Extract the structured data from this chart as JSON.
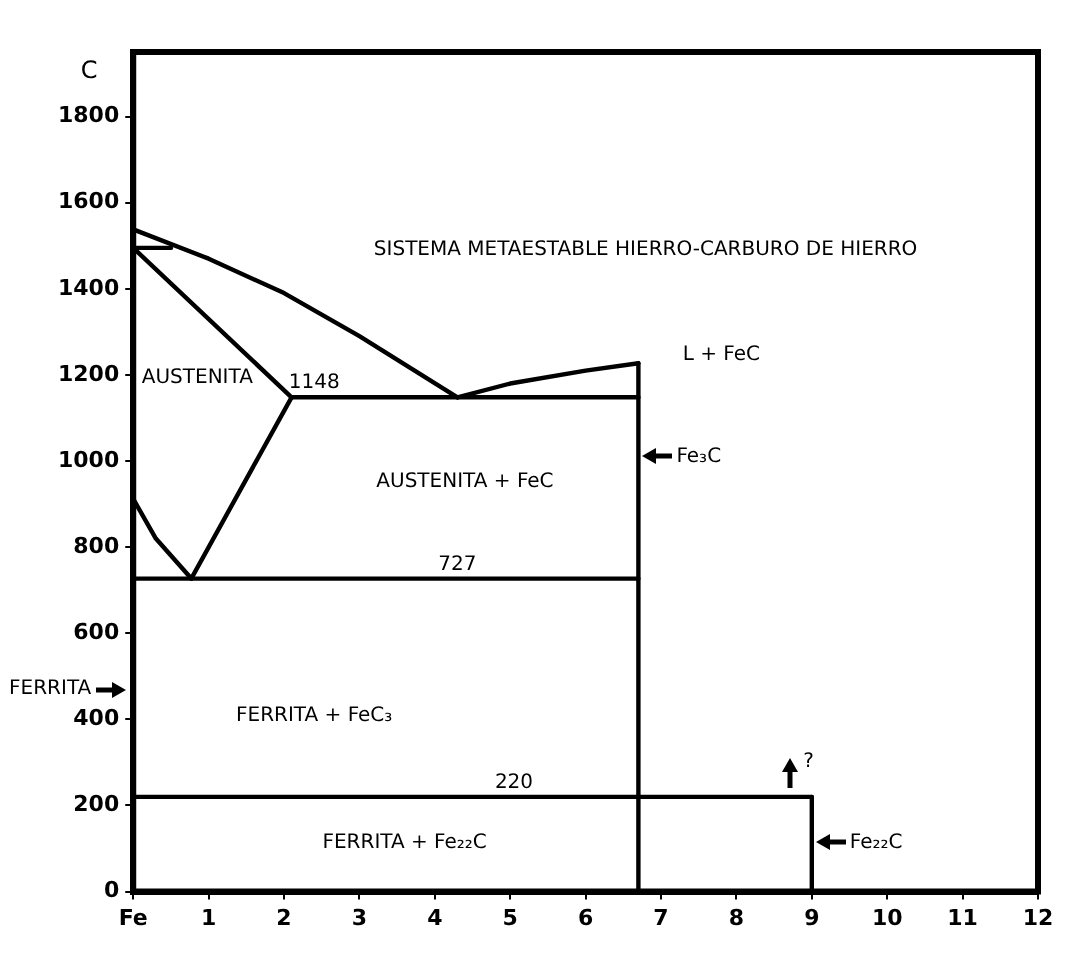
{
  "chart_data": {
    "type": "line",
    "title": "SISTEMA METAESTABLE HIERRO-CARBURO DE HIERRO",
    "ylabel": "C",
    "xlim": [
      0,
      12
    ],
    "xticks": [
      {
        "value": 0,
        "label": "Fe"
      },
      1,
      2,
      3,
      4,
      5,
      6,
      7,
      8,
      9,
      10,
      11,
      12
    ],
    "ylim": [
      0,
      1950
    ],
    "yticks": [
      0,
      200,
      400,
      600,
      800,
      1000,
      1200,
      1400,
      1600,
      1800
    ],
    "grid": false,
    "legend": false,
    "marker": "none",
    "line_style": "solid",
    "series": [
      {
        "color": "#000000",
        "x": [
          0,
          1,
          2,
          3,
          4.3
        ],
        "values": [
          1538,
          1470,
          1390,
          1290,
          1148
        ]
      },
      {
        "color": "#000000",
        "x": [
          4.3,
          5,
          6,
          6.7
        ],
        "values": [
          1148,
          1180,
          1210,
          1227
        ]
      },
      {
        "color": "#000000",
        "x": [
          0,
          2.1
        ],
        "values": [
          1495,
          1148
        ]
      },
      {
        "color": "#000000",
        "x": [
          0,
          0.5
        ],
        "values": [
          1495,
          1495
        ]
      },
      {
        "color": "#000000",
        "x": [
          0,
          0.3,
          0.77
        ],
        "values": [
          912,
          820,
          727
        ]
      },
      {
        "color": "#000000",
        "x": [
          0.77,
          2.1
        ],
        "values": [
          727,
          1148
        ]
      },
      {
        "color": "#000000",
        "x": [
          2.1,
          6.7
        ],
        "values": [
          1148,
          1148
        ]
      },
      {
        "color": "#000000",
        "x": [
          0,
          6.7
        ],
        "values": [
          727,
          727
        ]
      },
      {
        "color": "#000000",
        "x": [
          0,
          9
        ],
        "values": [
          220,
          220
        ]
      },
      {
        "color": "#000000",
        "x": [
          6.7,
          6.7
        ],
        "values": [
          1227,
          0
        ]
      },
      {
        "color": "#000000",
        "x": [
          9,
          9
        ],
        "values": [
          220,
          0
        ]
      }
    ],
    "annotations": [
      "AUSTENITA",
      {
        "text": "1148",
        "x": 2.4,
        "y": 1148
      },
      "L + FeC",
      {
        "text": "Fe₃C",
        "x": 6.7,
        "y": 1010
      },
      "AUSTENITA + FeC",
      {
        "text": "727",
        "x": 4.3,
        "y": 727
      },
      "FERRITA",
      "FERRITA + FeC₃",
      {
        "text": "220",
        "x": 5.05,
        "y": 220
      },
      "FERRITA + Fe₂₂C",
      {
        "text": "Fe₂₂C",
        "x": 9,
        "y": 113
      },
      "?"
    ]
  }
}
